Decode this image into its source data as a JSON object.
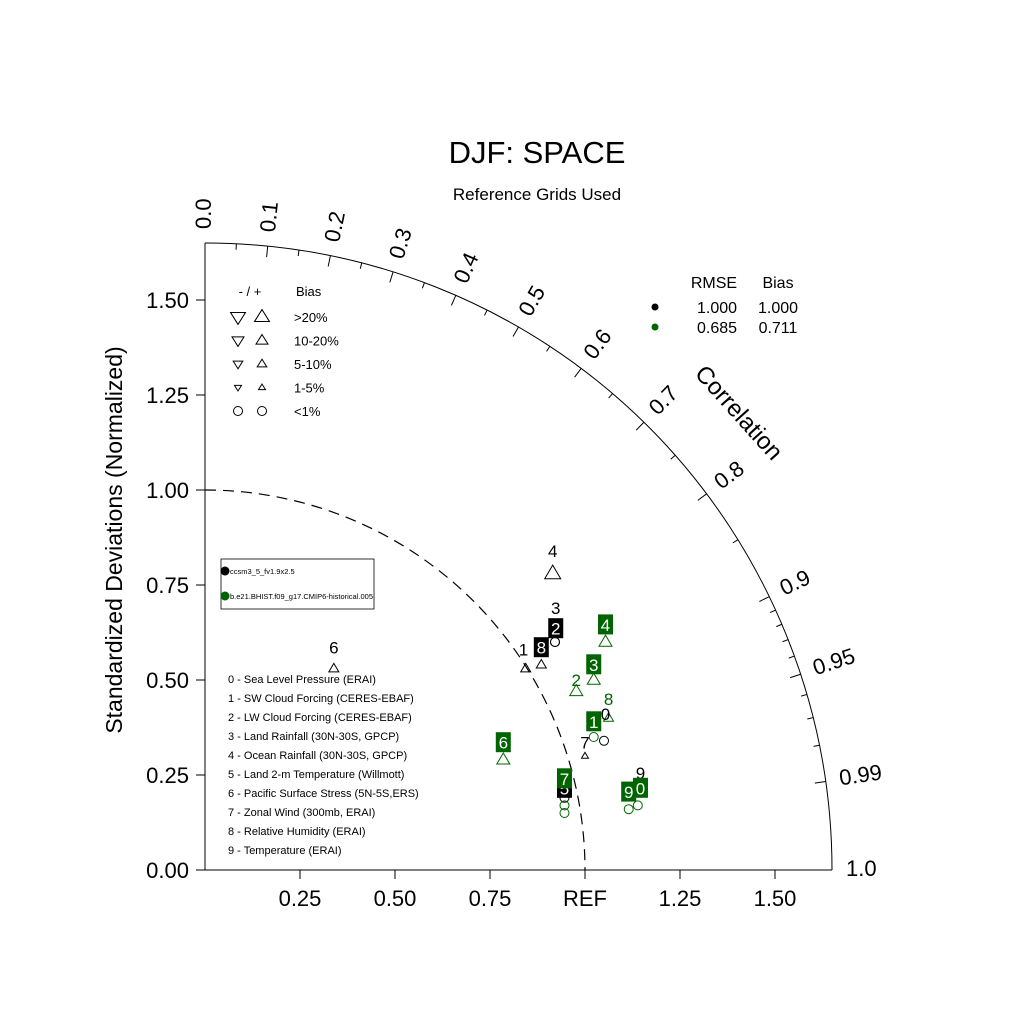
{
  "chart_data": {
    "type": "scatter",
    "subtype": "taylor-diagram",
    "title": "DJF: SPACE",
    "subtitle": "Reference Grids Used",
    "ylabel": "Standardized Deviations (Normalized)",
    "arc_label": "Correlation",
    "ref_label": "REF",
    "std_range": [
      0,
      1.65
    ],
    "x_ticks": [
      "0.25",
      "0.50",
      "0.75",
      "REF",
      "1.25",
      "1.50"
    ],
    "x_tick_values": [
      0.25,
      0.5,
      0.75,
      1.0,
      1.25,
      1.5
    ],
    "y_ticks": [
      "0.00",
      "0.25",
      "0.50",
      "0.75",
      "1.00",
      "1.25",
      "1.50"
    ],
    "y_tick_values": [
      0,
      0.25,
      0.5,
      0.75,
      1.0,
      1.25,
      1.5
    ],
    "corr_labels": [
      {
        "text": "0.0",
        "r": 0.0
      },
      {
        "text": "0.1",
        "r": 0.1
      },
      {
        "text": "0.2",
        "r": 0.2
      },
      {
        "text": "0.3",
        "r": 0.3
      },
      {
        "text": "0.4",
        "r": 0.4
      },
      {
        "text": "0.5",
        "r": 0.5
      },
      {
        "text": "0.6",
        "r": 0.6
      },
      {
        "text": "0.7",
        "r": 0.7
      },
      {
        "text": "0.8",
        "r": 0.8
      },
      {
        "text": "0.9",
        "r": 0.9
      },
      {
        "text": "0.95",
        "r": 0.95
      },
      {
        "text": "0.99",
        "r": 0.99
      },
      {
        "text": "1.0",
        "r": 1.0
      }
    ],
    "corr_minor_ticks": [
      0.05,
      0.15,
      0.25,
      0.35,
      0.45,
      0.55,
      0.65,
      0.75,
      0.85,
      0.91,
      0.92,
      0.93,
      0.94,
      0.96,
      0.97,
      0.98
    ],
    "ref_arc_radius": 1.0,
    "series": [
      {
        "name": "ccsm3_5_fv1.9x2.5",
        "color": "#000000",
        "rmse": "1.000",
        "bias": "1.000",
        "points": [
          {
            "id": "0",
            "x": 1.05,
            "y": 0.34,
            "marker": "circle"
          },
          {
            "id": "1",
            "x": 0.844,
            "y": 0.53,
            "marker": "tri-up-small"
          },
          {
            "id": "2",
            "x": 0.921,
            "y": 0.6,
            "marker": "circle"
          },
          {
            "id": "3",
            "x": 0.921,
            "y": 0.6,
            "marker": "circle"
          },
          {
            "id": "4",
            "x": 0.915,
            "y": 0.78,
            "marker": "tri-up-large"
          },
          {
            "id": "5",
            "x": 0.946,
            "y": 0.19,
            "marker": "circle"
          },
          {
            "id": "6",
            "x": 0.339,
            "y": 0.53,
            "marker": "tri-up-small"
          },
          {
            "id": "7",
            "x": 1.0,
            "y": 0.3,
            "marker": "tri-up-tiny"
          },
          {
            "id": "8",
            "x": 0.885,
            "y": 0.54,
            "marker": "tri-up-small"
          },
          {
            "id": "9",
            "x": 1.143,
            "y": 0.22,
            "marker": "circle"
          }
        ]
      },
      {
        "name": "b.e21.BHIST.f09_g17.CMIP6-historical.005",
        "color": "#006400",
        "rmse": "0.685",
        "bias": "0.711",
        "points": [
          {
            "id": "0",
            "x": 1.139,
            "y": 0.17,
            "marker": "circle"
          },
          {
            "id": "1",
            "x": 1.023,
            "y": 0.35,
            "marker": "circle"
          },
          {
            "id": "2",
            "x": 0.977,
            "y": 0.47,
            "marker": "tri-up-medium"
          },
          {
            "id": "3",
            "x": 1.023,
            "y": 0.5,
            "marker": "tri-up-medium"
          },
          {
            "id": "4",
            "x": 1.054,
            "y": 0.6,
            "marker": "tri-up-medium"
          },
          {
            "id": "5",
            "x": 0.946,
            "y": 0.15,
            "marker": "circle"
          },
          {
            "id": "6",
            "x": 0.785,
            "y": 0.29,
            "marker": "tri-up-medium"
          },
          {
            "id": "7",
            "x": 0.946,
            "y": 0.17,
            "marker": "circle"
          },
          {
            "id": "8",
            "x": 1.062,
            "y": 0.4,
            "marker": "tri-up-small"
          },
          {
            "id": "9",
            "x": 1.115,
            "y": 0.16,
            "marker": "circle"
          }
        ]
      }
    ],
    "labels": [
      {
        "id": "0",
        "series": 0,
        "x": 1.054,
        "y": 0.41,
        "boxed": false
      },
      {
        "id": "1",
        "series": 0,
        "x": 0.838,
        "y": 0.58,
        "boxed": false
      },
      {
        "id": "2",
        "series": 0,
        "x": 0.923,
        "y": 0.635,
        "boxed": true
      },
      {
        "id": "3",
        "series": 0,
        "x": 0.923,
        "y": 0.69,
        "boxed": false
      },
      {
        "id": "4",
        "series": 0,
        "x": 0.915,
        "y": 0.84,
        "boxed": false
      },
      {
        "id": "5",
        "series": 0,
        "x": 0.946,
        "y": 0.215,
        "boxed": true
      },
      {
        "id": "6",
        "series": 0,
        "x": 0.339,
        "y": 0.585,
        "boxed": false
      },
      {
        "id": "7",
        "series": 0,
        "x": 1.0,
        "y": 0.335,
        "boxed": false
      },
      {
        "id": "8",
        "series": 0,
        "x": 0.885,
        "y": 0.585,
        "boxed": true
      },
      {
        "id": "9",
        "series": 0,
        "x": 1.146,
        "y": 0.255,
        "boxed": false
      },
      {
        "id": "0",
        "series": 1,
        "x": 1.146,
        "y": 0.215,
        "boxed": true
      },
      {
        "id": "1",
        "series": 1,
        "x": 1.023,
        "y": 0.39,
        "boxed": true
      },
      {
        "id": "2",
        "series": 1,
        "x": 0.977,
        "y": 0.5,
        "boxed": false
      },
      {
        "id": "3",
        "series": 1,
        "x": 1.023,
        "y": 0.54,
        "boxed": true
      },
      {
        "id": "4",
        "series": 1,
        "x": 1.054,
        "y": 0.645,
        "boxed": true
      },
      {
        "id": "6",
        "series": 1,
        "x": 0.785,
        "y": 0.335,
        "boxed": true
      },
      {
        "id": "7",
        "series": 1,
        "x": 0.946,
        "y": 0.24,
        "boxed": true
      },
      {
        "id": "8",
        "series": 1,
        "x": 1.062,
        "y": 0.45,
        "boxed": false
      },
      {
        "id": "9",
        "series": 1,
        "x": 1.115,
        "y": 0.205,
        "boxed": true
      }
    ],
    "bias_legend": {
      "header_sign": "- / +",
      "header_bias": "Bias",
      "rows": [
        ">20%",
        "10-20%",
        "5-10%",
        "1-5%",
        "<1%"
      ]
    },
    "stats_legend": {
      "rmse_header": "RMSE",
      "bias_header": "Bias"
    },
    "variables": [
      "0 - Sea Level Pressure (ERAI)",
      "1 - SW Cloud Forcing (CERES-EBAF)",
      "2 - LW Cloud Forcing (CERES-EBAF)",
      "3 - Land Rainfall (30N-30S, GPCP)",
      "4 - Ocean Rainfall (30N-30S, GPCP)",
      "5 - Land 2-m Temperature (Willmott)",
      "6 - Pacific Surface Stress (5N-5S,ERS)",
      "7 - Zonal Wind (300mb, ERAI)",
      "8 - Relative Humidity (ERAI)",
      "9 - Temperature (ERAI)"
    ]
  }
}
